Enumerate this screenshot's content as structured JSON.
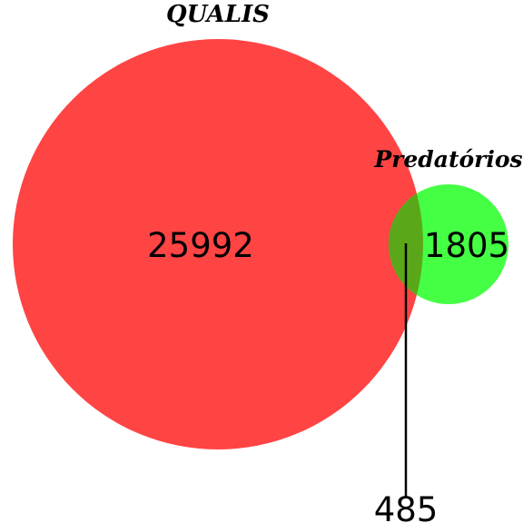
{
  "diagram": {
    "type": "venn",
    "sets": [
      {
        "name": "QUALIS",
        "only_count": "25992",
        "color": "#ff4444"
      },
      {
        "name": "Predatórios",
        "only_count": "1805",
        "color": "#44ff44"
      }
    ],
    "intersection": {
      "count": "485",
      "color": "#5aa81a"
    }
  }
}
